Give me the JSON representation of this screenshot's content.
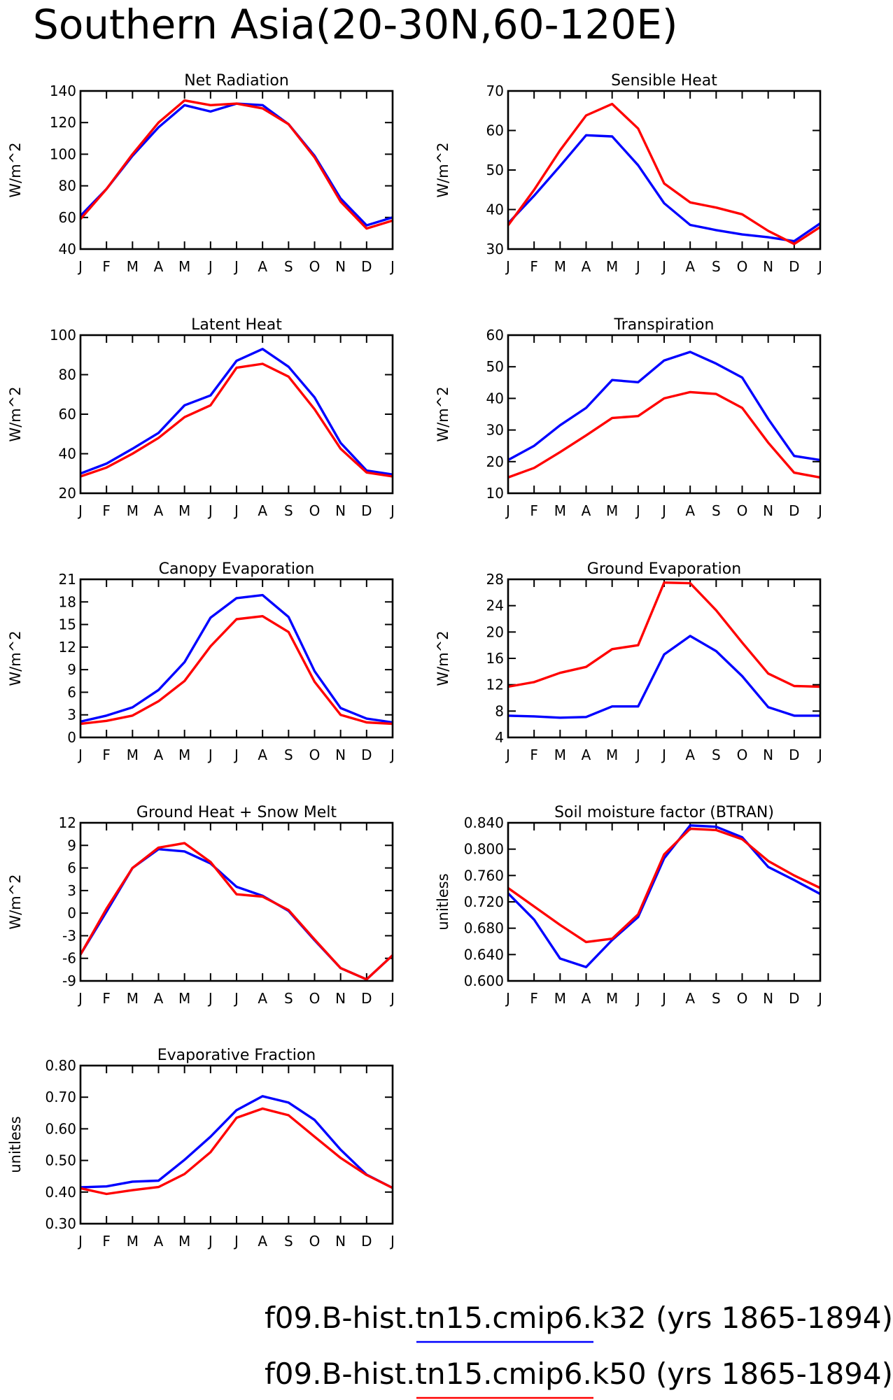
{
  "page": {
    "title": "Southern Asia(20-30N,60-120E)"
  },
  "colors": {
    "k32": "#0000ff",
    "k50": "#ff0000",
    "axis": "#000000",
    "background": "#ffffff"
  },
  "legend": [
    {
      "series": "k32",
      "label": "f09.B-hist.tn15.cmip6.k32 (yrs 1865-1894)",
      "color": "#0000ff"
    },
    {
      "series": "k50",
      "label": "f09.B-hist.tn15.cmip6.k50 (yrs 1865-1894)",
      "color": "#ff0000"
    }
  ],
  "chart_data": [
    {
      "type": "line",
      "title": "Net Radiation",
      "ylabel": "W/m^2",
      "x": [
        "J",
        "F",
        "M",
        "A",
        "M",
        "J",
        "J",
        "A",
        "S",
        "O",
        "N",
        "D",
        "J"
      ],
      "ylim": [
        40,
        140
      ],
      "yticks": [
        40,
        60,
        80,
        100,
        120,
        140
      ],
      "ytick_labels": [
        "40",
        "60",
        "80",
        "100",
        "120",
        "140"
      ],
      "series": [
        {
          "key": "k32",
          "values": [
            61,
            78,
            99,
            117,
            131,
            127,
            132,
            131,
            119,
            99,
            72,
            55,
            60
          ]
        },
        {
          "key": "k50",
          "values": [
            59,
            78,
            100,
            120,
            134,
            131,
            132,
            129,
            119,
            98,
            70,
            53,
            58
          ]
        }
      ]
    },
    {
      "type": "line",
      "title": "Sensible Heat",
      "ylabel": "W/m^2",
      "x": [
        "J",
        "F",
        "M",
        "A",
        "M",
        "J",
        "J",
        "A",
        "S",
        "O",
        "N",
        "D",
        "J"
      ],
      "ylim": [
        30,
        70
      ],
      "yticks": [
        30,
        40,
        50,
        60,
        70
      ],
      "ytick_labels": [
        "30",
        "40",
        "50",
        "60",
        "70"
      ],
      "series": [
        {
          "key": "k32",
          "values": [
            36.5,
            43.5,
            51,
            58.8,
            58.5,
            51.2,
            41.6,
            36.1,
            34.8,
            33.7,
            33,
            32,
            36.5
          ]
        },
        {
          "key": "k50",
          "values": [
            36,
            45,
            55,
            63.8,
            66.7,
            60.5,
            46.6,
            41.8,
            40.5,
            38.8,
            34.6,
            31.3,
            35.6
          ]
        }
      ]
    },
    {
      "type": "line",
      "title": "Latent Heat",
      "ylabel": "W/m^2",
      "x": [
        "J",
        "F",
        "M",
        "A",
        "M",
        "J",
        "J",
        "A",
        "S",
        "O",
        "N",
        "D",
        "J"
      ],
      "ylim": [
        20,
        100
      ],
      "yticks": [
        20,
        40,
        60,
        80,
        100
      ],
      "ytick_labels": [
        "20",
        "40",
        "60",
        "80",
        "100"
      ],
      "series": [
        {
          "key": "k32",
          "values": [
            30,
            35,
            42.5,
            50.5,
            64.5,
            69.5,
            87,
            93,
            84,
            68.5,
            45.5,
            31.5,
            29.5
          ]
        },
        {
          "key": "k50",
          "values": [
            28.5,
            33,
            40,
            48,
            58.5,
            64.5,
            83.5,
            85.5,
            79,
            62.5,
            42.5,
            30.5,
            28.5
          ]
        }
      ]
    },
    {
      "type": "line",
      "title": "Transpiration",
      "ylabel": "W/m^2",
      "x": [
        "J",
        "F",
        "M",
        "A",
        "M",
        "J",
        "J",
        "A",
        "S",
        "O",
        "N",
        "D",
        "J"
      ],
      "ylim": [
        10,
        60
      ],
      "yticks": [
        10,
        20,
        30,
        40,
        50,
        60
      ],
      "ytick_labels": [
        "10",
        "20",
        "30",
        "40",
        "50",
        "60"
      ],
      "series": [
        {
          "key": "k32",
          "values": [
            20.5,
            25,
            31.5,
            37,
            45.8,
            45.1,
            52,
            54.7,
            51,
            46.6,
            33.5,
            21.8,
            20.5
          ]
        },
        {
          "key": "k50",
          "values": [
            15,
            18,
            23,
            28.3,
            33.8,
            34.4,
            40,
            42,
            41.4,
            37,
            26,
            16.5,
            15
          ]
        }
      ]
    },
    {
      "type": "line",
      "title": "Canopy Evaporation",
      "ylabel": "W/m^2",
      "x": [
        "J",
        "F",
        "M",
        "A",
        "M",
        "J",
        "J",
        "A",
        "S",
        "O",
        "N",
        "D",
        "J"
      ],
      "ylim": [
        0,
        21
      ],
      "yticks": [
        0,
        3,
        6,
        9,
        12,
        15,
        18,
        21
      ],
      "ytick_labels": [
        "0",
        "3",
        "6",
        "9",
        "12",
        "15",
        "18",
        "21"
      ],
      "series": [
        {
          "key": "k32",
          "values": [
            2.1,
            2.9,
            4.0,
            6.3,
            10.0,
            15.9,
            18.5,
            18.9,
            16.0,
            8.8,
            3.9,
            2.5,
            2.0
          ]
        },
        {
          "key": "k50",
          "values": [
            1.8,
            2.2,
            2.9,
            4.8,
            7.5,
            12.1,
            15.7,
            16.1,
            14.0,
            7.4,
            3.0,
            2.0,
            1.8
          ]
        }
      ]
    },
    {
      "type": "line",
      "title": "Ground Evaporation",
      "ylabel": "W/m^2",
      "x": [
        "J",
        "F",
        "M",
        "A",
        "M",
        "J",
        "J",
        "A",
        "S",
        "O",
        "N",
        "D",
        "J"
      ],
      "ylim": [
        4,
        28
      ],
      "yticks": [
        4,
        8,
        12,
        16,
        20,
        24,
        28
      ],
      "ytick_labels": [
        "4",
        "8",
        "12",
        "16",
        "20",
        "24",
        "28"
      ],
      "series": [
        {
          "key": "k32",
          "values": [
            7.3,
            7.2,
            7.0,
            7.1,
            8.7,
            8.7,
            16.6,
            19.4,
            17.1,
            13.3,
            8.6,
            7.3,
            7.3
          ]
        },
        {
          "key": "k50",
          "values": [
            11.7,
            12.4,
            13.8,
            14.7,
            17.4,
            18.0,
            27.5,
            27.4,
            23.3,
            18.4,
            13.7,
            11.8,
            11.7
          ]
        }
      ]
    },
    {
      "type": "line",
      "title": "Ground Heat + Snow Melt",
      "ylabel": "W/m^2",
      "x": [
        "J",
        "F",
        "M",
        "A",
        "M",
        "J",
        "J",
        "A",
        "S",
        "O",
        "N",
        "D",
        "J"
      ],
      "ylim": [
        -9,
        12
      ],
      "yticks": [
        -9,
        -6,
        -3,
        0,
        3,
        6,
        9,
        12
      ],
      "ytick_labels": [
        "-9",
        "-6",
        "-3",
        "0",
        "3",
        "6",
        "9",
        "12"
      ],
      "series": [
        {
          "key": "k32",
          "values": [
            -5.5,
            0.2,
            6.0,
            8.5,
            8.2,
            6.6,
            3.5,
            2.3,
            0.3,
            -3.6,
            -7.3,
            -8.8,
            -5.6
          ]
        },
        {
          "key": "k50",
          "values": [
            -5.5,
            0.6,
            6.0,
            8.7,
            9.3,
            6.8,
            2.5,
            2.2,
            0.4,
            -3.5,
            -7.3,
            -8.8,
            -5.6
          ]
        }
      ]
    },
    {
      "type": "line",
      "title": "Soil moisture factor (BTRAN)",
      "ylabel": "unitless",
      "x": [
        "J",
        "F",
        "M",
        "A",
        "M",
        "J",
        "J",
        "A",
        "S",
        "O",
        "N",
        "D",
        "J"
      ],
      "ylim": [
        0.6,
        0.84
      ],
      "yticks": [
        0.6,
        0.64,
        0.68,
        0.72,
        0.76,
        0.8,
        0.84
      ],
      "ytick_labels": [
        "0.600",
        "0.640",
        "0.680",
        "0.720",
        "0.760",
        "0.800",
        "0.840"
      ],
      "series": [
        {
          "key": "k32",
          "values": [
            0.733,
            0.693,
            0.634,
            0.621,
            0.662,
            0.697,
            0.786,
            0.836,
            0.834,
            0.818,
            0.773,
            0.753,
            0.732
          ]
        },
        {
          "key": "k50",
          "values": [
            0.741,
            0.713,
            0.685,
            0.659,
            0.664,
            0.701,
            0.792,
            0.831,
            0.829,
            0.815,
            0.782,
            0.76,
            0.741
          ]
        }
      ]
    },
    {
      "type": "line",
      "title": "Evaporative Fraction",
      "ylabel": "unitless",
      "x": [
        "J",
        "F",
        "M",
        "A",
        "M",
        "J",
        "J",
        "A",
        "S",
        "O",
        "N",
        "D",
        "J"
      ],
      "ylim": [
        0.3,
        0.8
      ],
      "yticks": [
        0.3,
        0.4,
        0.5,
        0.6,
        0.7,
        0.8
      ],
      "ytick_labels": [
        "0.30",
        "0.40",
        "0.50",
        "0.60",
        "0.70",
        "0.80"
      ],
      "series": [
        {
          "key": "k32",
          "values": [
            0.415,
            0.418,
            0.433,
            0.436,
            0.502,
            0.575,
            0.659,
            0.703,
            0.683,
            0.628,
            0.534,
            0.455,
            0.413
          ]
        },
        {
          "key": "k50",
          "values": [
            0.412,
            0.394,
            0.406,
            0.416,
            0.457,
            0.526,
            0.635,
            0.664,
            0.643,
            0.575,
            0.508,
            0.454,
            0.413
          ]
        }
      ]
    }
  ]
}
